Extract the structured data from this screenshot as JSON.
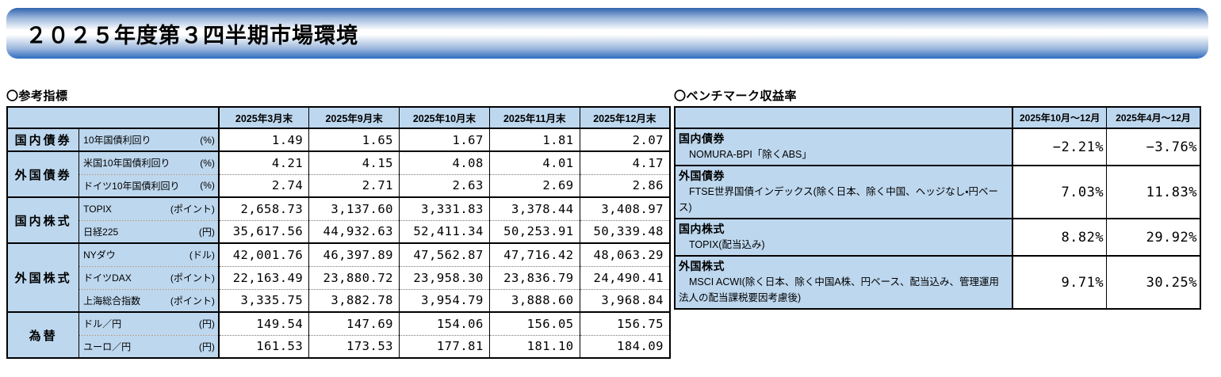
{
  "banner": {
    "title": "２０２５年度第３四半期市場環境"
  },
  "colors": {
    "header_fill": "#bdd7ee",
    "banner_top": "#2f63ae",
    "banner_bottom": "#2d6cc0"
  },
  "reference": {
    "title": "〇参考指標",
    "columns": [
      "2025年3月末",
      "2025年9月末",
      "2025年10月末",
      "2025年11月末",
      "2025年12月末"
    ],
    "groups": [
      {
        "category": "国内債券",
        "rows": [
          {
            "label": "10年国債利回り",
            "unit": "(%)",
            "values": [
              "1.49",
              "1.65",
              "1.67",
              "1.81",
              "2.07"
            ]
          }
        ]
      },
      {
        "category": "外国債券",
        "rows": [
          {
            "label": "米国10年国債利回り",
            "unit": "(%)",
            "values": [
              "4.21",
              "4.15",
              "4.08",
              "4.01",
              "4.17"
            ]
          },
          {
            "label": "ドイツ10年国債利回り",
            "unit": "(%)",
            "values": [
              "2.74",
              "2.71",
              "2.63",
              "2.69",
              "2.86"
            ]
          }
        ]
      },
      {
        "category": "国内株式",
        "rows": [
          {
            "label": "TOPIX",
            "unit": "(ポイント)",
            "values": [
              "2,658.73",
              "3,137.60",
              "3,331.83",
              "3,378.44",
              "3,408.97"
            ]
          },
          {
            "label": "日経225",
            "unit": "(円)",
            "values": [
              "35,617.56",
              "44,932.63",
              "52,411.34",
              "50,253.91",
              "50,339.48"
            ]
          }
        ]
      },
      {
        "category": "外国株式",
        "rows": [
          {
            "label": "NYダウ",
            "unit": "(ドル)",
            "values": [
              "42,001.76",
              "46,397.89",
              "47,562.87",
              "47,716.42",
              "48,063.29"
            ]
          },
          {
            "label": "ドイツDAX",
            "unit": "(ポイント)",
            "values": [
              "22,163.49",
              "23,880.72",
              "23,958.30",
              "23,836.79",
              "24,490.41"
            ]
          },
          {
            "label": "上海総合指数",
            "unit": "(ポイント)",
            "values": [
              "3,335.75",
              "3,882.78",
              "3,954.79",
              "3,888.60",
              "3,968.84"
            ]
          }
        ]
      },
      {
        "category": "為替",
        "rows": [
          {
            "label": "ドル／円",
            "unit": "(円)",
            "values": [
              "149.54",
              "147.69",
              "154.06",
              "156.05",
              "156.75"
            ]
          },
          {
            "label": "ユーロ／円",
            "unit": "(円)",
            "values": [
              "161.53",
              "173.53",
              "177.81",
              "181.10",
              "184.09"
            ]
          }
        ]
      }
    ]
  },
  "benchmark": {
    "title": "〇ベンチマーク収益率",
    "columns": [
      "2025年10月～12月",
      "2025年4月～12月"
    ],
    "rows": [
      {
        "category": "国内債券",
        "description": "NOMURA-BPI「除くABS」",
        "values": [
          "−2.21%",
          "−3.76%"
        ]
      },
      {
        "category": "外国債券",
        "description": "FTSE世界国債インデックス(除く日本、除く中国、ヘッジなし・円ベース)",
        "values": [
          "7.03%",
          "11.83%"
        ]
      },
      {
        "category": "国内株式",
        "description": "TOPIX(配当込み)",
        "values": [
          "8.82%",
          "29.92%"
        ]
      },
      {
        "category": "外国株式",
        "description": "MSCI ACWI(除く日本、除く中国A株、円ベース、配当込み、管理運用法人の配当課税要因考慮後)",
        "values": [
          "9.71%",
          "30.25%"
        ]
      }
    ]
  }
}
